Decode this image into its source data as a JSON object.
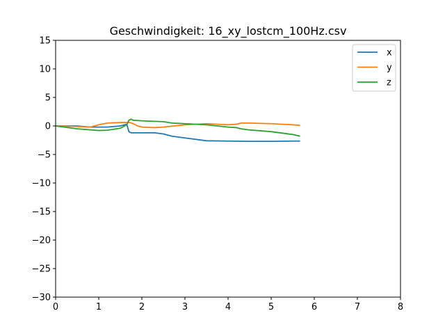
{
  "chart_data": {
    "type": "line",
    "title": "Geschwindigkeit: 16_xy_lostcm_100Hz.csv",
    "xlabel": "",
    "ylabel": "",
    "xlim": [
      0,
      8
    ],
    "ylim": [
      -30,
      15
    ],
    "xticks": [
      0,
      1,
      2,
      3,
      4,
      5,
      6,
      7,
      8
    ],
    "yticks": [
      15,
      10,
      5,
      0,
      -5,
      -10,
      -15,
      -20,
      -25,
      -30
    ],
    "xtick_labels": [
      "0",
      "1",
      "2",
      "3",
      "4",
      "5",
      "6",
      "7",
      "8"
    ],
    "ytick_labels": [
      "15",
      "10",
      "5",
      "0",
      "−5",
      "−10",
      "−15",
      "−20",
      "−25",
      "−30"
    ],
    "grid": false,
    "legend_position": "top-right",
    "series": [
      {
        "name": "x",
        "color": "#1f77b4",
        "x": [
          0,
          0.5,
          0.8,
          1.2,
          1.5,
          1.65,
          1.7,
          1.75,
          2.0,
          2.3,
          2.5,
          2.7,
          3.0,
          3.2,
          3.5,
          4.0,
          4.5,
          5.0,
          5.5,
          5.67
        ],
        "y": [
          0,
          0,
          -0.2,
          -0.2,
          0,
          0.3,
          -1.0,
          -1.2,
          -1.2,
          -1.2,
          -1.4,
          -1.8,
          -2.1,
          -2.3,
          -2.6,
          -2.65,
          -2.7,
          -2.7,
          -2.65,
          -2.65
        ]
      },
      {
        "name": "y",
        "color": "#ff7f0e",
        "x": [
          0,
          0.5,
          0.8,
          1.0,
          1.2,
          1.5,
          1.65,
          1.72,
          1.8,
          1.9,
          2.0,
          2.3,
          2.5,
          3.0,
          3.5,
          4.0,
          4.2,
          4.3,
          4.5,
          5.0,
          5.5,
          5.67
        ],
        "y": [
          0,
          -0.1,
          -0.2,
          0.2,
          0.5,
          0.6,
          0.6,
          0.6,
          0.4,
          0,
          -0.2,
          -0.3,
          -0.2,
          0.2,
          0.4,
          0.2,
          0.3,
          0.5,
          0.5,
          0.4,
          0.2,
          0.1
        ]
      },
      {
        "name": "z",
        "color": "#2ca02c",
        "x": [
          0,
          0.5,
          1.0,
          1.2,
          1.5,
          1.65,
          1.7,
          1.75,
          1.8,
          2.0,
          2.5,
          2.7,
          3.0,
          3.5,
          4.0,
          4.2,
          4.3,
          4.5,
          5.0,
          5.5,
          5.67
        ],
        "y": [
          0,
          -0.5,
          -0.8,
          -0.75,
          -0.4,
          0.2,
          1.0,
          1.2,
          1.0,
          0.9,
          0.75,
          0.5,
          0.4,
          0.2,
          -0.2,
          -0.3,
          -0.5,
          -0.7,
          -1.0,
          -1.5,
          -1.8
        ]
      }
    ]
  }
}
